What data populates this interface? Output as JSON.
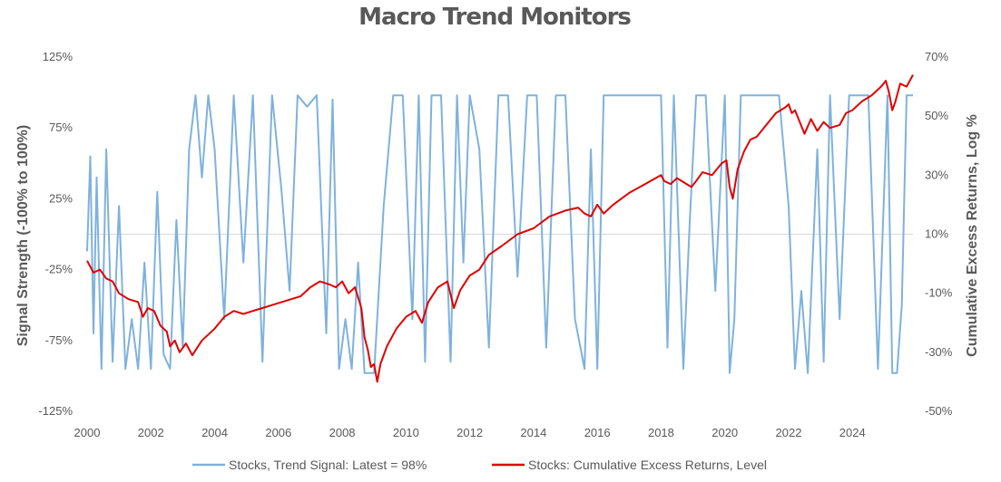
{
  "chart_data": {
    "type": "line",
    "title": "Macro Trend Monitors",
    "xlabel": "",
    "ylabel_left": "Signal Strength (-100% to 100%)",
    "ylabel_right": "Cumulative Excess Returns, Log %",
    "x_range": [
      2000,
      2025.9
    ],
    "x_ticks": [
      "2000",
      "2002",
      "2004",
      "2006",
      "2008",
      "2010",
      "2012",
      "2014",
      "2016",
      "2018",
      "2020",
      "2022",
      "2024"
    ],
    "y_left_range": [
      -125,
      125
    ],
    "y_left_ticks": [
      "125%",
      "75%",
      "25%",
      "-25%",
      "-75%",
      "-125%"
    ],
    "y_right_range": [
      -50,
      70
    ],
    "y_right_ticks": [
      "70%",
      "50%",
      "30%",
      "10%",
      "-10%",
      "-30%",
      "-50%"
    ],
    "reference_line": {
      "axis": "left",
      "value": 0
    },
    "legend": [
      "Stocks, Trend Signal: Latest = 98%",
      "Stocks:  Cumulative Excess Returns, Level"
    ],
    "series": [
      {
        "name": "Stocks, Trend Signal: Latest = 98%",
        "axis": "left",
        "color": "#7FB2DC",
        "x": [
          2000.0,
          2000.1,
          2000.2,
          2000.3,
          2000.45,
          2000.6,
          2000.8,
          2001.0,
          2001.2,
          2001.4,
          2001.6,
          2001.8,
          2002.0,
          2002.2,
          2002.4,
          2002.6,
          2002.8,
          2003.0,
          2003.2,
          2003.4,
          2003.6,
          2003.8,
          2004.0,
          2004.3,
          2004.6,
          2004.9,
          2005.2,
          2005.5,
          2005.8,
          2006.1,
          2006.35,
          2006.6,
          2006.9,
          2007.2,
          2007.5,
          2007.7,
          2007.9,
          2008.1,
          2008.3,
          2008.5,
          2008.7,
          2009.0,
          2009.3,
          2009.6,
          2009.9,
          2010.2,
          2010.4,
          2010.6,
          2010.8,
          2011.1,
          2011.4,
          2011.6,
          2011.8,
          2012.0,
          2012.3,
          2012.6,
          2012.9,
          2013.2,
          2013.5,
          2013.8,
          2014.1,
          2014.4,
          2014.7,
          2015.0,
          2015.3,
          2015.6,
          2015.8,
          2016.0,
          2016.2,
          2016.5,
          2016.8,
          2017.1,
          2017.4,
          2017.7,
          2018.0,
          2018.2,
          2018.4,
          2018.7,
          2018.9,
          2019.1,
          2019.4,
          2019.7,
          2020.0,
          2020.15,
          2020.3,
          2020.5,
          2020.8,
          2021.1,
          2021.4,
          2021.7,
          2022.0,
          2022.2,
          2022.4,
          2022.6,
          2022.9,
          2023.1,
          2023.3,
          2023.6,
          2023.9,
          2024.2,
          2024.5,
          2024.8,
          2025.1,
          2025.25,
          2025.4,
          2025.55,
          2025.7,
          2025.9
        ],
        "values": [
          -12,
          55,
          -70,
          40,
          -95,
          60,
          -90,
          20,
          -95,
          -60,
          -95,
          -20,
          -95,
          30,
          -85,
          -95,
          10,
          -80,
          60,
          98,
          40,
          98,
          60,
          -60,
          98,
          -20,
          98,
          -90,
          98,
          30,
          -40,
          98,
          90,
          98,
          -70,
          95,
          -95,
          -60,
          -95,
          -20,
          -98,
          -98,
          20,
          98,
          98,
          -60,
          98,
          -90,
          98,
          98,
          -90,
          98,
          -20,
          98,
          60,
          -80,
          98,
          98,
          -30,
          98,
          98,
          -80,
          98,
          98,
          -60,
          -95,
          60,
          -95,
          98,
          98,
          98,
          98,
          98,
          98,
          98,
          -80,
          98,
          -95,
          10,
          98,
          98,
          -40,
          98,
          -98,
          -60,
          98,
          98,
          98,
          98,
          98,
          20,
          -95,
          -40,
          -98,
          60,
          -90,
          98,
          -60,
          98,
          98,
          98,
          -95,
          98,
          -98,
          -98,
          -50,
          98,
          98
        ]
      },
      {
        "name": "Stocks:  Cumulative Excess Returns, Level",
        "axis": "right",
        "color": "#E00000",
        "x": [
          2000.0,
          2000.2,
          2000.4,
          2000.6,
          2000.8,
          2001.0,
          2001.3,
          2001.6,
          2001.75,
          2001.9,
          2002.1,
          2002.3,
          2002.5,
          2002.6,
          2002.75,
          2002.9,
          2003.1,
          2003.3,
          2003.6,
          2004.0,
          2004.3,
          2004.6,
          2004.9,
          2005.2,
          2005.5,
          2005.8,
          2006.1,
          2006.4,
          2006.7,
          2007.0,
          2007.3,
          2007.6,
          2007.8,
          2008.0,
          2008.2,
          2008.4,
          2008.6,
          2008.7,
          2008.8,
          2008.9,
          2009.0,
          2009.1,
          2009.2,
          2009.4,
          2009.7,
          2010.0,
          2010.3,
          2010.5,
          2010.7,
          2011.0,
          2011.3,
          2011.5,
          2011.7,
          2012.0,
          2012.3,
          2012.6,
          2013.0,
          2013.5,
          2014.0,
          2014.5,
          2015.0,
          2015.4,
          2015.6,
          2015.8,
          2016.0,
          2016.2,
          2016.5,
          2017.0,
          2017.5,
          2018.0,
          2018.1,
          2018.3,
          2018.5,
          2018.8,
          2018.95,
          2019.1,
          2019.3,
          2019.6,
          2019.9,
          2020.05,
          2020.15,
          2020.25,
          2020.4,
          2020.6,
          2020.8,
          2021.0,
          2021.3,
          2021.6,
          2021.9,
          2022.0,
          2022.1,
          2022.2,
          2022.35,
          2022.5,
          2022.7,
          2022.9,
          2023.1,
          2023.3,
          2023.6,
          2023.8,
          2024.0,
          2024.3,
          2024.6,
          2024.9,
          2025.05,
          2025.15,
          2025.25,
          2025.35,
          2025.5,
          2025.7,
          2025.9
        ],
        "values": [
          1,
          -3,
          -2,
          -5,
          -6,
          -10,
          -12,
          -13,
          -18,
          -15,
          -16,
          -21,
          -23,
          -28,
          -26,
          -30,
          -27,
          -31,
          -26,
          -22,
          -18,
          -16,
          -17,
          -16,
          -15,
          -14,
          -13,
          -12,
          -11,
          -8,
          -6,
          -7,
          -8,
          -6,
          -10,
          -8,
          -15,
          -25,
          -29,
          -35,
          -34,
          -40,
          -34,
          -28,
          -22,
          -18,
          -16,
          -20,
          -13,
          -8,
          -6,
          -15,
          -9,
          -4,
          -2,
          3,
          6,
          10,
          12,
          16,
          18,
          19,
          17,
          16,
          20,
          17,
          20,
          24,
          27,
          30,
          28,
          27,
          29,
          27,
          26,
          28,
          31,
          30,
          34,
          35,
          26,
          22,
          32,
          38,
          42,
          43,
          47,
          51,
          53,
          54,
          51,
          52,
          48,
          44,
          49,
          45,
          48,
          46,
          47,
          51,
          52,
          55,
          57,
          60,
          62,
          58,
          52,
          55,
          61,
          60,
          64
        ]
      }
    ]
  }
}
